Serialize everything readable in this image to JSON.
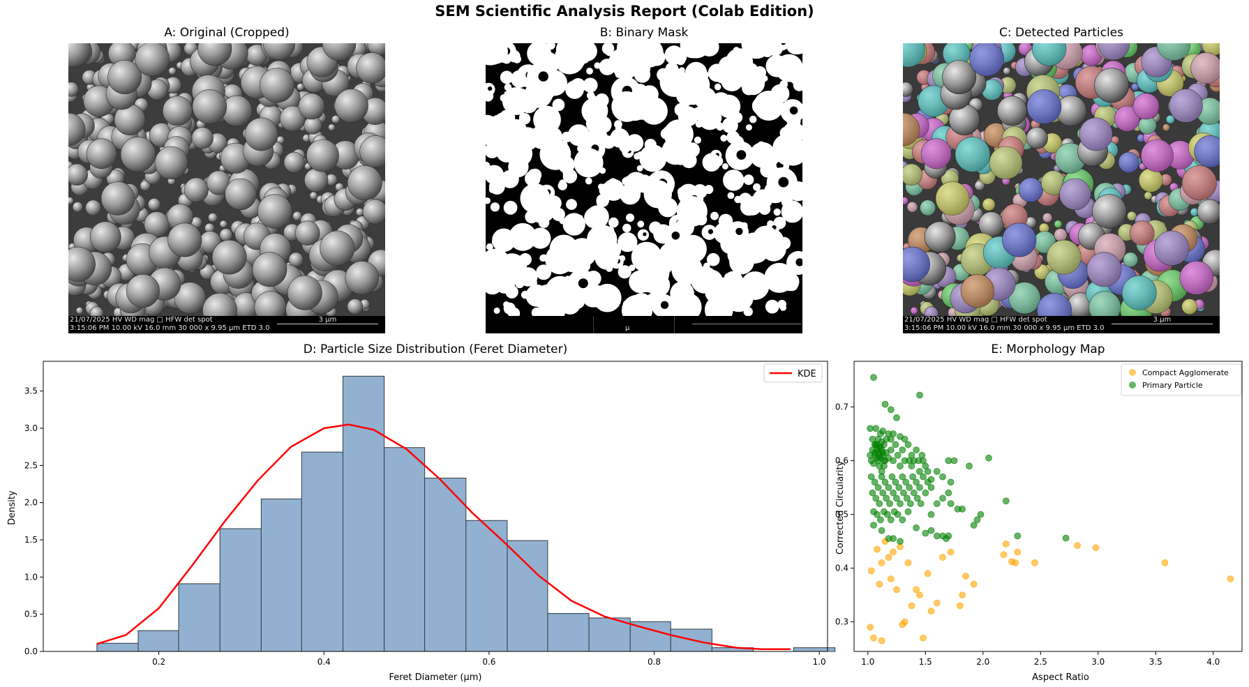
{
  "report": {
    "title": "SEM Scientific Analysis Report (Colab Edition)"
  },
  "panel_a": {
    "title": "A: Original (Cropped)",
    "info_line1": "21/07/2025    HV      WD     mag □    HFW    det   spot",
    "info_line2": "3:15:06 PM  10.00 kV  16.0 mm  30 000 x  9.95 µm  ETD   3.0",
    "scale_label": "3 µm"
  },
  "panel_b": {
    "title": "B: Binary Mask",
    "scale_label": "µ"
  },
  "panel_c": {
    "title": "C: Detected Particles",
    "info_line1": "21/07/2025    HV      WD     mag □    HFW    det   spot",
    "info_line2": "3:15:06 PM  10.00 kV  16.0 mm  30 000 x  9.95 µm  ETD   3.0",
    "scale_label": "3 µm"
  },
  "colors": {
    "hist_fill": "#92b1d0",
    "hist_edge": "#333a44",
    "kde": "#ff0000",
    "compact": "#ffa500",
    "primary": "#008000"
  },
  "chart_data": [
    {
      "type": "bar",
      "title": "D: Particle Size Distribution (Feret Diameter)",
      "xlabel": "Feret Diameter (µm)",
      "ylabel": "Density",
      "xlim": [
        0.06,
        1.01
      ],
      "ylim": [
        0,
        3.9
      ],
      "xticks": [
        "0.2",
        "0.4",
        "0.6",
        "0.8",
        "1.0"
      ],
      "xtick_values": [
        0.2,
        0.4,
        0.6,
        0.8,
        1.0
      ],
      "yticks": [
        "0.0",
        "0.5",
        "1.0",
        "1.5",
        "2.0",
        "2.5",
        "3.0",
        "3.5"
      ],
      "ytick_values": [
        0,
        0.5,
        1.0,
        1.5,
        2.0,
        2.5,
        3.0,
        3.5
      ],
      "bin_edges": [
        0.125,
        0.175,
        0.224,
        0.274,
        0.324,
        0.373,
        0.423,
        0.473,
        0.522,
        0.572,
        0.622,
        0.671,
        0.721,
        0.771,
        0.82,
        0.87,
        0.92,
        0.969
      ],
      "densities": [
        0.11,
        0.28,
        0.91,
        1.65,
        2.05,
        2.68,
        3.7,
        2.74,
        2.33,
        1.76,
        1.49,
        0.51,
        0.45,
        0.4,
        0.3,
        0.05,
        0.0,
        0.05
      ],
      "legend": "KDE",
      "legend_position": "top-right",
      "kde": {
        "name": "KDE",
        "x": [
          0.125,
          0.16,
          0.2,
          0.24,
          0.28,
          0.32,
          0.36,
          0.4,
          0.43,
          0.46,
          0.5,
          0.54,
          0.58,
          0.62,
          0.66,
          0.7,
          0.74,
          0.78,
          0.82,
          0.86,
          0.9,
          0.93,
          0.965
        ],
        "y": [
          0.1,
          0.22,
          0.58,
          1.15,
          1.75,
          2.3,
          2.75,
          3.0,
          3.05,
          2.98,
          2.72,
          2.32,
          1.86,
          1.45,
          1.02,
          0.68,
          0.47,
          0.34,
          0.22,
          0.12,
          0.05,
          0.03,
          0.03
        ]
      }
    },
    {
      "type": "scatter",
      "title": "E: Morphology Map",
      "xlabel": "Aspect Ratio",
      "ylabel": "Corrected Circularity",
      "xlim": [
        0.88,
        4.25
      ],
      "ylim": [
        0.245,
        0.785
      ],
      "xticks": [
        "1.0",
        "1.5",
        "2.0",
        "2.5",
        "3.0",
        "3.5",
        "4.0"
      ],
      "xtick_values": [
        1.0,
        1.5,
        2.0,
        2.5,
        3.0,
        3.5,
        4.0
      ],
      "yticks": [
        "0.3",
        "0.4",
        "0.5",
        "0.6",
        "0.7"
      ],
      "ytick_values": [
        0.3,
        0.4,
        0.5,
        0.6,
        0.7
      ],
      "legend_position": "top-right",
      "series": [
        {
          "name": "Compact Agglomerate",
          "points": [
            [
              1.02,
              0.29
            ],
            [
              1.05,
              0.27
            ],
            [
              1.12,
              0.265
            ],
            [
              1.03,
              0.395
            ],
            [
              1.08,
              0.435
            ],
            [
              1.1,
              0.37
            ],
            [
              1.12,
              0.41
            ],
            [
              1.15,
              0.45
            ],
            [
              1.18,
              0.42
            ],
            [
              1.2,
              0.38
            ],
            [
              1.22,
              0.43
            ],
            [
              1.25,
              0.36
            ],
            [
              1.28,
              0.44
            ],
            [
              1.3,
              0.295
            ],
            [
              1.32,
              0.3
            ],
            [
              1.35,
              0.41
            ],
            [
              1.38,
              0.33
            ],
            [
              1.42,
              0.36
            ],
            [
              1.45,
              0.35
            ],
            [
              1.48,
              0.27
            ],
            [
              1.52,
              0.39
            ],
            [
              1.55,
              0.32
            ],
            [
              1.6,
              0.335
            ],
            [
              1.65,
              0.42
            ],
            [
              1.72,
              0.43
            ],
            [
              1.8,
              0.33
            ],
            [
              1.82,
              0.35
            ],
            [
              1.85,
              0.385
            ],
            [
              1.92,
              0.37
            ],
            [
              2.18,
              0.425
            ],
            [
              2.2,
              0.445
            ],
            [
              2.25,
              0.412
            ],
            [
              2.28,
              0.41
            ],
            [
              2.3,
              0.43
            ],
            [
              2.45,
              0.41
            ],
            [
              2.82,
              0.442
            ],
            [
              2.98,
              0.438
            ],
            [
              3.58,
              0.41
            ],
            [
              4.15,
              0.38
            ]
          ]
        },
        {
          "name": "Primary Particle",
          "points": [
            [
              1.05,
              0.755
            ],
            [
              1.15,
              0.705
            ],
            [
              1.2,
              0.695
            ],
            [
              1.25,
              0.68
            ],
            [
              1.45,
              0.722
            ],
            [
              1.02,
              0.66
            ],
            [
              1.04,
              0.64
            ],
            [
              1.06,
              0.63
            ],
            [
              1.08,
              0.62
            ],
            [
              1.1,
              0.61
            ],
            [
              1.03,
              0.6
            ],
            [
              1.05,
              0.595
            ],
            [
              1.07,
              0.63
            ],
            [
              1.09,
              0.615
            ],
            [
              1.11,
              0.625
            ],
            [
              1.13,
              0.61
            ],
            [
              1.15,
              0.6
            ],
            [
              1.06,
              0.61
            ],
            [
              1.08,
              0.605
            ],
            [
              1.1,
              0.59
            ],
            [
              1.12,
              0.62
            ],
            [
              1.14,
              0.63
            ],
            [
              1.04,
              0.62
            ],
            [
              1.16,
              0.615
            ],
            [
              1.18,
              0.605
            ],
            [
              1.02,
              0.61
            ],
            [
              1.09,
              0.64
            ],
            [
              1.11,
              0.65
            ],
            [
              1.13,
              0.655
            ],
            [
              1.07,
              0.66
            ],
            [
              1.2,
              0.62
            ],
            [
              1.22,
              0.6
            ],
            [
              1.24,
              0.63
            ],
            [
              1.26,
              0.61
            ],
            [
              1.28,
              0.59
            ],
            [
              1.3,
              0.62
            ],
            [
              1.32,
              0.6
            ],
            [
              1.35,
              0.63
            ],
            [
              1.38,
              0.61
            ],
            [
              1.4,
              0.6
            ],
            [
              1.42,
              0.62
            ],
            [
              1.45,
              0.58
            ],
            [
              1.48,
              0.6
            ],
            [
              1.5,
              0.59
            ],
            [
              1.03,
              0.57
            ],
            [
              1.06,
              0.56
            ],
            [
              1.09,
              0.55
            ],
            [
              1.12,
              0.57
            ],
            [
              1.15,
              0.56
            ],
            [
              1.18,
              0.55
            ],
            [
              1.21,
              0.57
            ],
            [
              1.24,
              0.56
            ],
            [
              1.27,
              0.55
            ],
            [
              1.3,
              0.57
            ],
            [
              1.33,
              0.56
            ],
            [
              1.36,
              0.55
            ],
            [
              1.39,
              0.57
            ],
            [
              1.42,
              0.56
            ],
            [
              1.45,
              0.55
            ],
            [
              1.48,
              0.57
            ],
            [
              1.52,
              0.56
            ],
            [
              1.55,
              0.55
            ],
            [
              1.04,
              0.54
            ],
            [
              1.07,
              0.53
            ],
            [
              1.1,
              0.52
            ],
            [
              1.13,
              0.54
            ],
            [
              1.16,
              0.53
            ],
            [
              1.19,
              0.52
            ],
            [
              1.22,
              0.54
            ],
            [
              1.25,
              0.53
            ],
            [
              1.28,
              0.52
            ],
            [
              1.31,
              0.54
            ],
            [
              1.34,
              0.53
            ],
            [
              1.37,
              0.52
            ],
            [
              1.4,
              0.54
            ],
            [
              1.43,
              0.53
            ],
            [
              1.46,
              0.52
            ],
            [
              1.5,
              0.54
            ],
            [
              1.05,
              0.505
            ],
            [
              1.08,
              0.5
            ],
            [
              1.11,
              0.49
            ],
            [
              1.14,
              0.505
            ],
            [
              1.17,
              0.5
            ],
            [
              1.2,
              0.49
            ],
            [
              1.23,
              0.505
            ],
            [
              1.26,
              0.5
            ],
            [
              1.3,
              0.49
            ],
            [
              1.35,
              0.505
            ],
            [
              1.05,
              0.48
            ],
            [
              1.12,
              0.47
            ],
            [
              1.18,
              0.455
            ],
            [
              1.22,
              0.455
            ],
            [
              1.28,
              0.45
            ],
            [
              1.42,
              0.475
            ],
            [
              1.5,
              0.465
            ],
            [
              1.55,
              0.47
            ],
            [
              1.6,
              0.46
            ],
            [
              1.65,
              0.46
            ],
            [
              1.68,
              0.455
            ],
            [
              1.7,
              0.46
            ],
            [
              1.55,
              0.5
            ],
            [
              1.6,
              0.52
            ],
            [
              1.65,
              0.53
            ],
            [
              1.7,
              0.54
            ],
            [
              1.72,
              0.52
            ],
            [
              1.78,
              0.51
            ],
            [
              1.82,
              0.51
            ],
            [
              1.6,
              0.58
            ],
            [
              1.65,
              0.57
            ],
            [
              1.7,
              0.6
            ],
            [
              1.72,
              0.56
            ],
            [
              1.75,
              0.6
            ],
            [
              1.88,
              0.59
            ],
            [
              1.92,
              0.48
            ],
            [
              1.95,
              0.49
            ],
            [
              1.98,
              0.5
            ],
            [
              2.05,
              0.605
            ],
            [
              2.2,
              0.525
            ],
            [
              2.3,
              0.46
            ],
            [
              2.72,
              0.456
            ],
            [
              1.12,
              0.58
            ],
            [
              1.14,
              0.59
            ],
            [
              1.16,
              0.64
            ],
            [
              1.18,
              0.65
            ],
            [
              1.2,
              0.64
            ],
            [
              1.22,
              0.65
            ],
            [
              1.28,
              0.645
            ],
            [
              1.32,
              0.64
            ],
            [
              1.36,
              0.6
            ],
            [
              1.38,
              0.59
            ],
            [
              1.44,
              0.6
            ],
            [
              1.47,
              0.61
            ],
            [
              1.52,
              0.58
            ],
            [
              1.55,
              0.565
            ],
            [
              1.1,
              0.625
            ],
            [
              1.06,
              0.615
            ],
            [
              1.08,
              0.63
            ],
            [
              1.12,
              0.635
            ],
            [
              1.14,
              0.6
            ],
            [
              1.09,
              0.6
            ],
            [
              1.11,
              0.605
            ],
            [
              1.13,
              0.615
            ]
          ]
        }
      ]
    }
  ]
}
